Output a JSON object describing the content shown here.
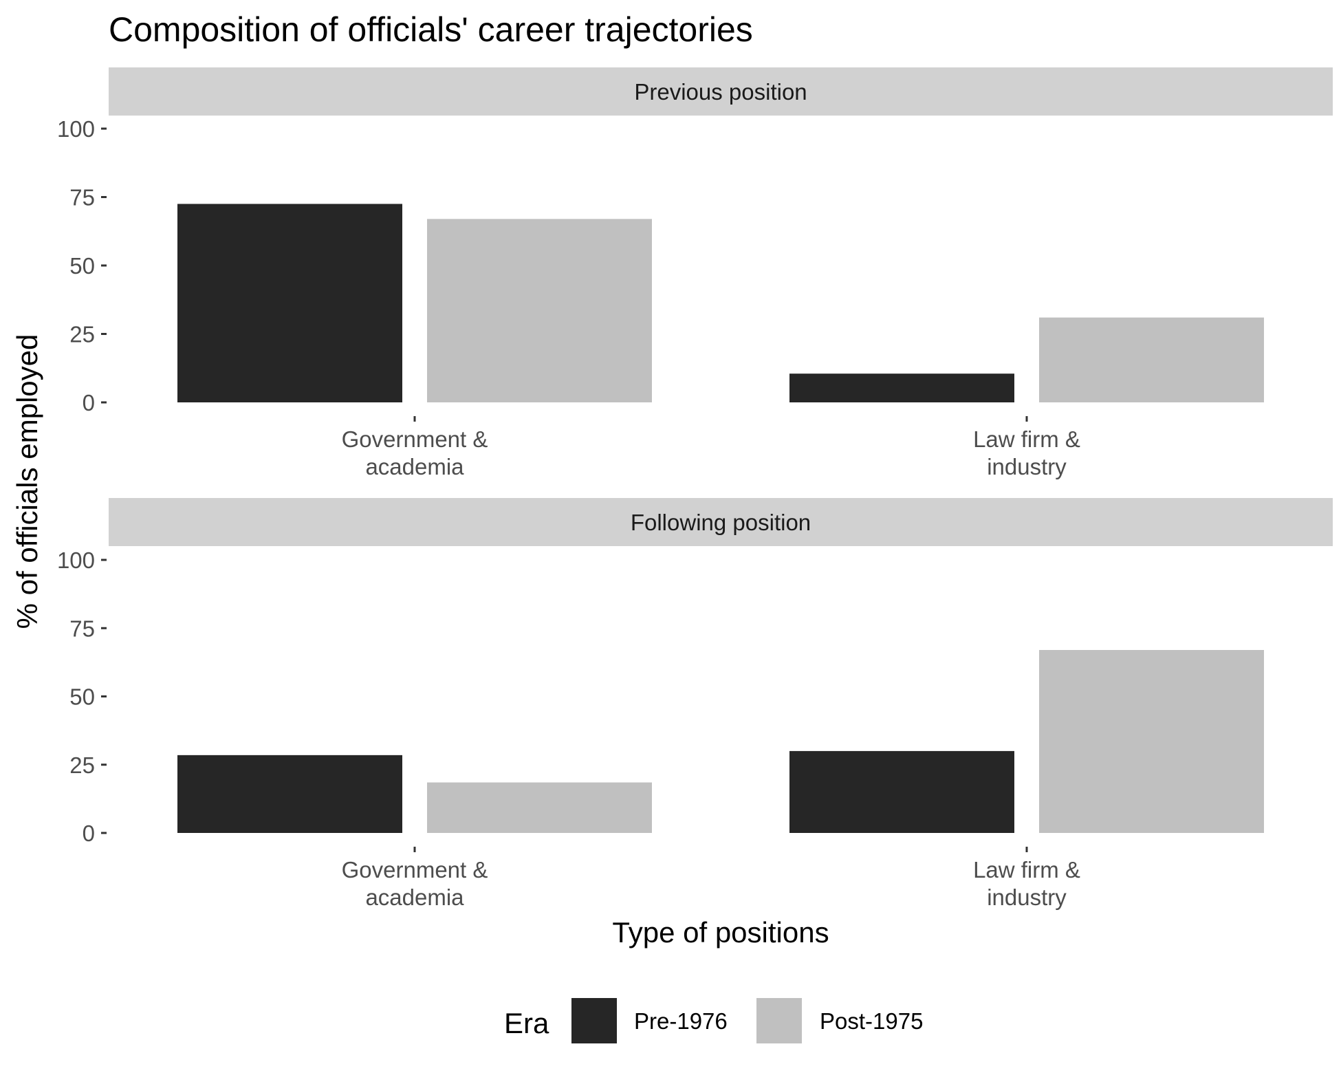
{
  "chart_data": {
    "type": "bar",
    "title": "Composition of officials' career trajectories",
    "xlabel": "Type of positions",
    "ylabel": "% of officials employed",
    "ylim": [
      0,
      100
    ],
    "yticks": [
      0,
      25,
      50,
      75,
      100
    ],
    "grid": false,
    "legend": {
      "title": "Era",
      "placement": "bottom",
      "entries": [
        {
          "name": "Pre-1976",
          "color": "#262626"
        },
        {
          "name": "Post-1975",
          "color": "#c0c0c0"
        }
      ]
    },
    "categories": [
      [
        "Government &",
        "academia"
      ],
      [
        "Law firm &",
        "industry"
      ]
    ],
    "panels": [
      {
        "strip": "Previous position",
        "series": [
          {
            "name": "Pre-1976",
            "values": [
              72.5,
              10.5
            ]
          },
          {
            "name": "Post-1975",
            "values": [
              67,
              31
            ]
          }
        ]
      },
      {
        "strip": "Following position",
        "series": [
          {
            "name": "Pre-1976",
            "values": [
              28.5,
              30
            ]
          },
          {
            "name": "Post-1975",
            "values": [
              18.5,
              67
            ]
          }
        ]
      }
    ],
    "strip_color": "#d1d1d1"
  }
}
